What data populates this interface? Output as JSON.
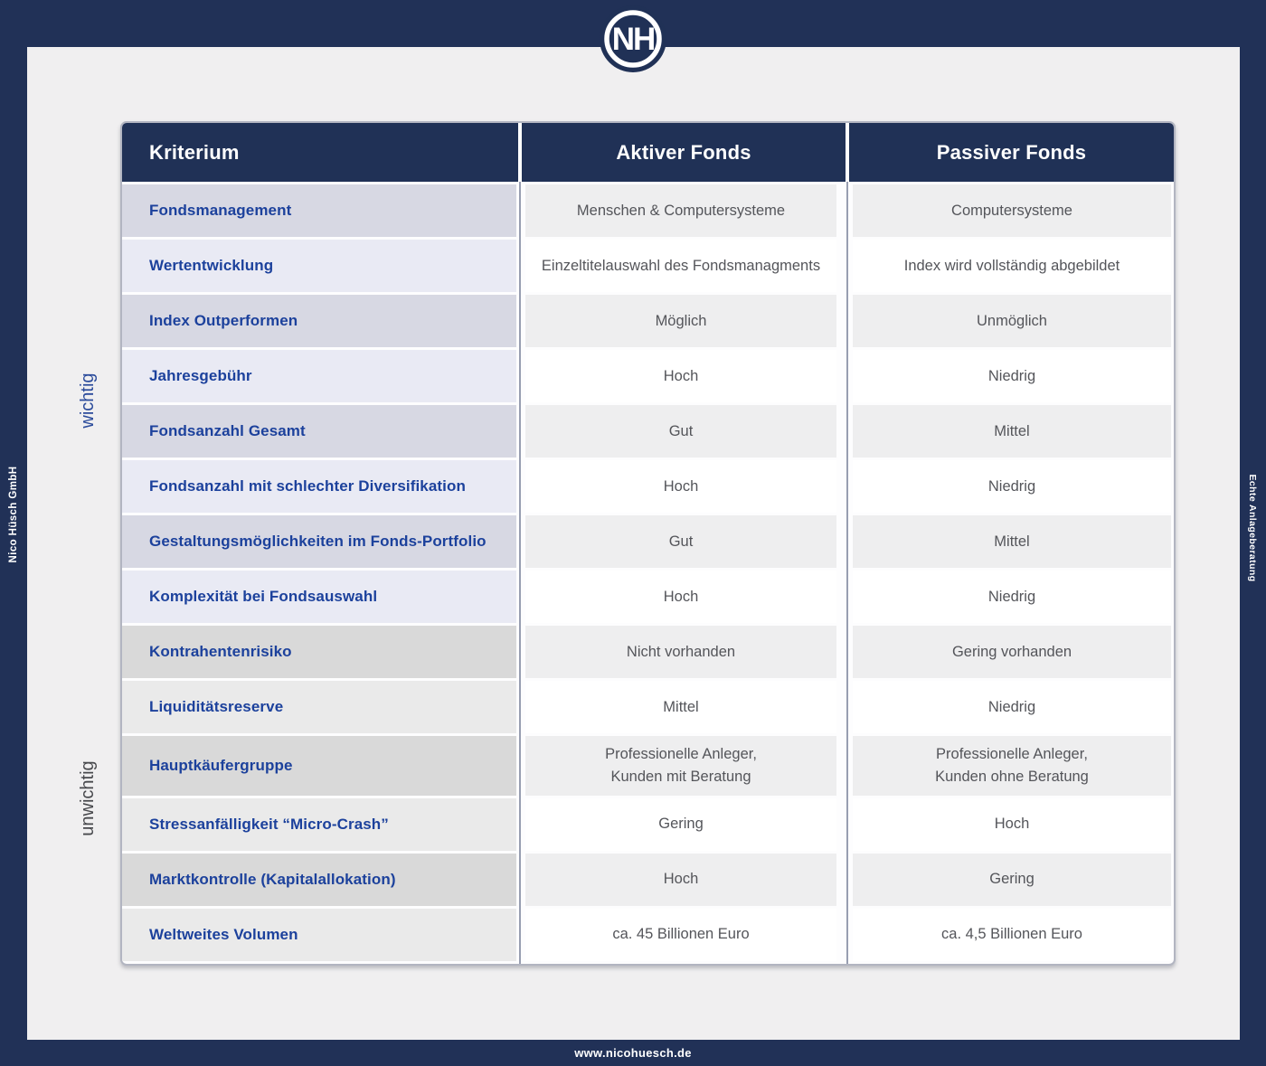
{
  "brand": {
    "logo_monogram": "NH",
    "company": "Nico Hüsch GmbH",
    "tagline": "Echte Anlageberatung",
    "website": "www.nicohuesch.de"
  },
  "groups": {
    "important": "wichtig",
    "unimportant": "unwichtig"
  },
  "colors": {
    "navy": "#203156",
    "page_background": "#f0eff0",
    "criterion_text": "#1c419c",
    "value_text": "#54555a",
    "criterion_row_dark_blue": "#d7d8e3",
    "criterion_row_light_blue": "#e9eaf4",
    "criterion_row_dark_gray": "#d9d9d9",
    "criterion_row_light_gray": "#eaeaea",
    "value_row_dark": "#eeeeef",
    "value_row_light": "#ffffff",
    "separator_line": "#989eb1"
  },
  "chart_data": {
    "type": "table",
    "columns": [
      "Kriterium",
      "Aktiver Fonds",
      "Passiver Fonds"
    ],
    "rows": [
      {
        "criterion": "Fondsmanagement",
        "active": "Menschen & Computersysteme",
        "passive": "Computersysteme",
        "group": "wichtig"
      },
      {
        "criterion": "Wertentwicklung",
        "active": "Einzeltitelauswahl des Fondsmanagments",
        "passive": "Index wird vollständig abgebildet",
        "group": "wichtig"
      },
      {
        "criterion": "Index Outperformen",
        "active": "Möglich",
        "passive": "Unmöglich",
        "group": "wichtig"
      },
      {
        "criterion": "Jahresgebühr",
        "active": "Hoch",
        "passive": "Niedrig",
        "group": "wichtig"
      },
      {
        "criterion": "Fondsanzahl Gesamt",
        "active": "Gut",
        "passive": "Mittel",
        "group": "wichtig"
      },
      {
        "criterion": "Fondsanzahl mit schlechter Diversifikation",
        "active": "Hoch",
        "passive": "Niedrig",
        "group": "wichtig"
      },
      {
        "criterion": "Gestaltungsmöglichkeiten im Fonds-Portfolio",
        "active": "Gut",
        "passive": "Mittel",
        "group": "wichtig"
      },
      {
        "criterion": "Komplexität bei Fondsauswahl",
        "active": "Hoch",
        "passive": "Niedrig",
        "group": "wichtig"
      },
      {
        "criterion": "Kontrahentenrisiko",
        "active": "Nicht vorhanden",
        "passive": "Gering vorhanden",
        "group": "unwichtig"
      },
      {
        "criterion": "Liquiditätsreserve",
        "active": "Mittel",
        "passive": "Niedrig",
        "group": "unwichtig"
      },
      {
        "criterion": "Hauptkäufergruppe",
        "active": "Professionelle Anleger,\nKunden mit Beratung",
        "passive": "Professionelle Anleger,\nKunden ohne Beratung",
        "group": "unwichtig"
      },
      {
        "criterion": "Stressanfälligkeit “Micro-Crash”",
        "active": "Gering",
        "passive": "Hoch",
        "group": "unwichtig"
      },
      {
        "criterion": "Marktkontrolle (Kapitalallokation)",
        "active": "Hoch",
        "passive": "Gering",
        "group": "unwichtig"
      },
      {
        "criterion": "Weltweites Volumen",
        "active": "ca. 45 Billionen Euro",
        "passive": "ca. 4,5 Billionen Euro",
        "group": "unwichtig"
      }
    ]
  }
}
